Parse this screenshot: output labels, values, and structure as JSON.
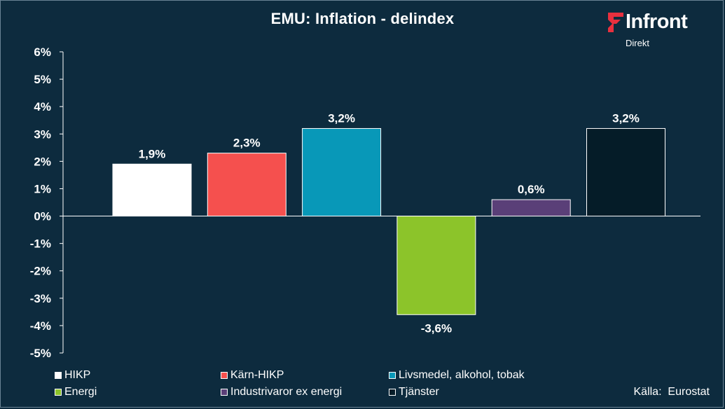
{
  "header": {
    "title": "EMU: Inflation - delindex"
  },
  "logo": {
    "name": "Infront",
    "sub": "Direkt",
    "mark_color": "#e8303e"
  },
  "source": "Källa:  Eurostat",
  "chart_data": {
    "type": "bar",
    "title": "EMU: Inflation - delindex",
    "categories": [
      "HIKP",
      "Kärn-HIKP",
      "Livsmedel, alkohol, tobak",
      "Energi",
      "Industrivaror ex energi",
      "Tjänster"
    ],
    "values": [
      1.9,
      2.3,
      3.2,
      -3.6,
      0.6,
      3.2
    ],
    "data_labels": [
      "1,9%",
      "2,3%",
      "3,2%",
      "-3,6%",
      "0,6%",
      "3,2%"
    ],
    "colors": [
      "#ffffff",
      "#f5504e",
      "#0898b8",
      "#8cc42a",
      "#5a3f78",
      "#051c28"
    ],
    "ylim": [
      -5,
      6
    ],
    "y_ticks": [
      6,
      5,
      4,
      3,
      2,
      1,
      0,
      -1,
      -2,
      -3,
      -4,
      -5
    ],
    "y_tick_labels": [
      "6%",
      "5%",
      "4%",
      "3%",
      "2%",
      "1%",
      "0%",
      "-1%",
      "-2%",
      "-3%",
      "-4%",
      "-5%"
    ],
    "grid": false,
    "legend": "bottom"
  }
}
